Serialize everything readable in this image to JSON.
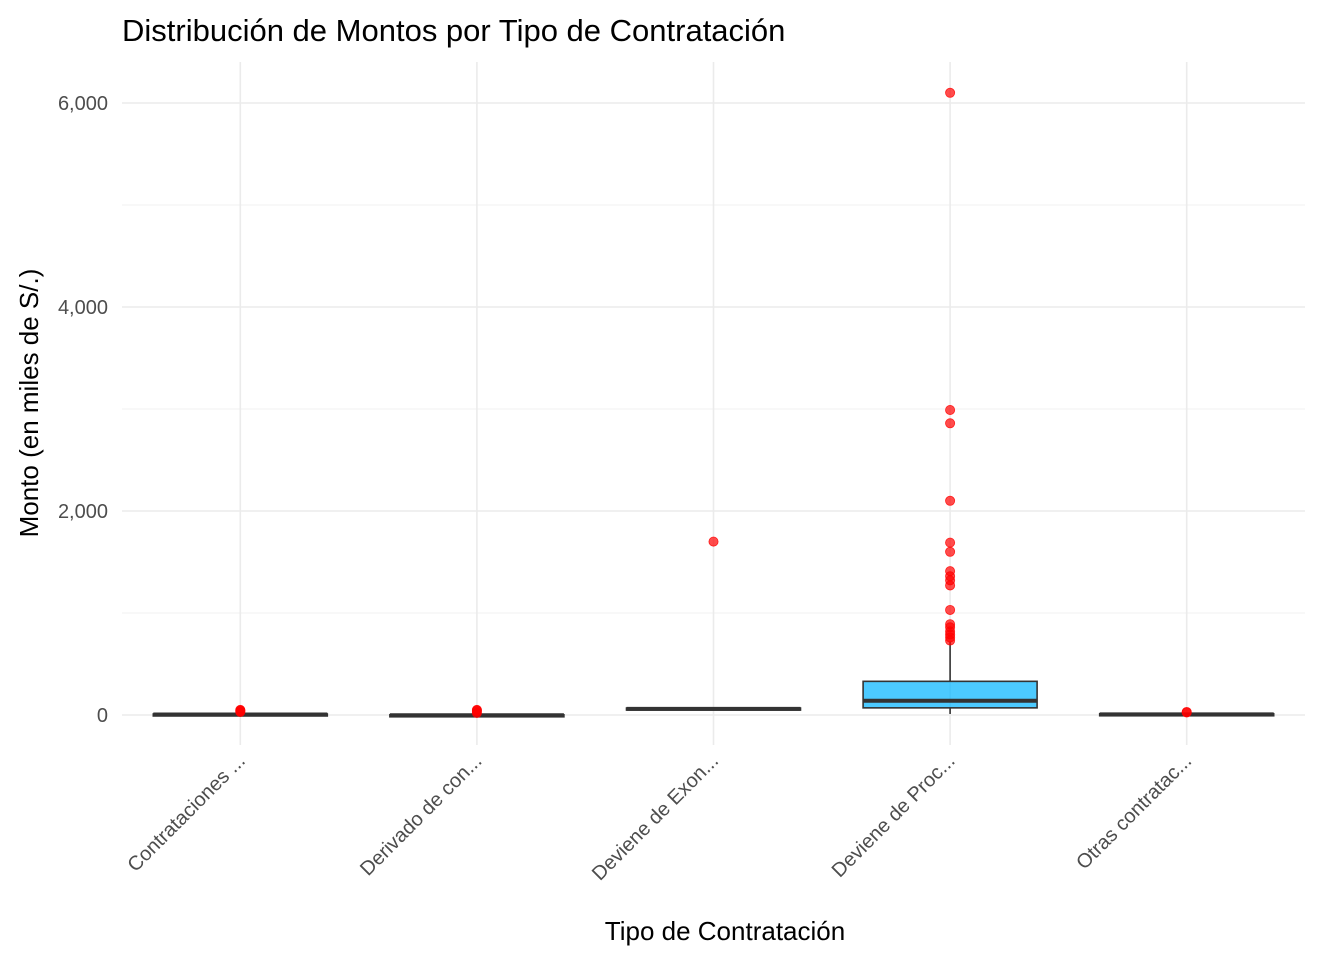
{
  "chart_data": {
    "type": "box",
    "title": "Distribución de Montos por Tipo de Contratación",
    "xlabel": "Tipo de Contratación",
    "ylabel": "Monto (en miles de S/.)",
    "categories": [
      "Contrataciones ...",
      "Derivado de con...",
      "Deviene de Exon...",
      "Deviene de Proc...",
      "Otras contratac..."
    ],
    "ylim": [
      -350,
      6220
    ],
    "yticks": [
      0,
      2000,
      4000,
      6000
    ],
    "ytick_labels": [
      "0",
      "2,000",
      "4,000",
      "6,000"
    ],
    "grid": true,
    "legend": "none",
    "box_fill": "#00b4ff",
    "box_fill_opacity": 0.7,
    "outlier_color": "#ff0000",
    "boxes": [
      {
        "category": "Contrataciones ...",
        "min": 0,
        "q1": 2,
        "median": 5,
        "q3": 10,
        "max": 25,
        "outliers": [
          30,
          38,
          45,
          50
        ]
      },
      {
        "category": "Derivado de con...",
        "min": -5,
        "q1": -5,
        "median": -2,
        "q3": 2,
        "max": 10,
        "outliers": [
          20,
          35,
          45,
          50
        ]
      },
      {
        "category": "Deviene de Exon...",
        "min": 50,
        "q1": 52,
        "median": 60,
        "q3": 68,
        "max": 72,
        "outliers": [
          1700
        ]
      },
      {
        "category": "Deviene de Proc...",
        "min": 10,
        "q1": 70,
        "median": 140,
        "q3": 330,
        "max": 720,
        "outliers": [
          730,
          760,
          790,
          820,
          860,
          890,
          1030,
          1270,
          1320,
          1360,
          1410,
          1600,
          1690,
          2100,
          2860,
          2990,
          6100
        ]
      },
      {
        "category": "Otras contratac...",
        "min": 0,
        "q1": 2,
        "median": 6,
        "q3": 12,
        "max": 20,
        "outliers": [
          25,
          30
        ]
      }
    ]
  }
}
